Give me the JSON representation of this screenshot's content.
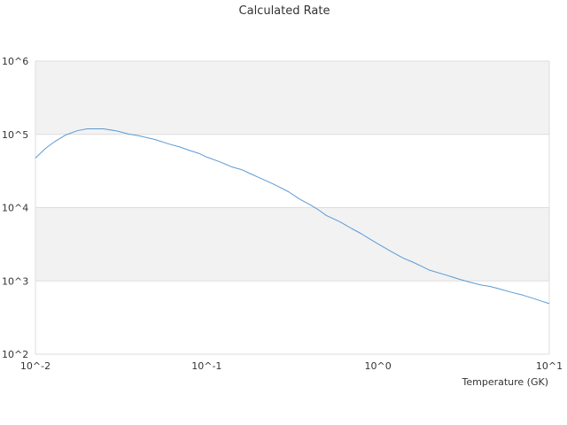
{
  "chart_data": {
    "type": "line",
    "title": "Calculated Rate",
    "xlabel": "Temperature (GK)",
    "ylabel": "",
    "x_scale": "log",
    "y_scale": "log",
    "xlim": [
      0.01,
      10
    ],
    "ylim": [
      100,
      1000000
    ],
    "x_ticks": [
      {
        "value": 0.01,
        "label": "10^-2"
      },
      {
        "value": 0.1,
        "label": "10^-1"
      },
      {
        "value": 1,
        "label": "10^0"
      },
      {
        "value": 10,
        "label": "10^1"
      }
    ],
    "y_ticks": [
      {
        "value": 100,
        "label": "10^2"
      },
      {
        "value": 1000,
        "label": "10^3"
      },
      {
        "value": 10000,
        "label": "10^4"
      },
      {
        "value": 100000,
        "label": "10^5"
      },
      {
        "value": 1000000,
        "label": "10^6"
      }
    ],
    "grid": "horizontal bands",
    "legend": "none",
    "colors": {
      "line": "#5b9bd5",
      "band": "#f2f2f2",
      "gridline": "#dddddd",
      "text": "#333333"
    },
    "series": [
      {
        "x": [
          0.01,
          0.0115,
          0.013,
          0.015,
          0.0175,
          0.02,
          0.025,
          0.03,
          0.035,
          0.04,
          0.05,
          0.06,
          0.07,
          0.08,
          0.09,
          0.1,
          0.12,
          0.14,
          0.16,
          0.18,
          0.2,
          0.25,
          0.3,
          0.35,
          0.4,
          0.45,
          0.5,
          0.6,
          0.7,
          0.8,
          0.9,
          1.0,
          1.2,
          1.4,
          1.6,
          1.8,
          2.0,
          2.5,
          3.0,
          3.5,
          4.0,
          4.5,
          5.0,
          6.0,
          7.0,
          8.0,
          9.0,
          10.0
        ],
        "values": [
          47500,
          65000,
          80000,
          98000,
          112000,
          119000,
          119000,
          111000,
          101000,
          96000,
          85000,
          74000,
          67000,
          60000,
          55000,
          49000,
          42000,
          36000,
          33000,
          29000,
          26000,
          20500,
          16500,
          13000,
          11000,
          9300,
          7800,
          6400,
          5200,
          4400,
          3700,
          3200,
          2500,
          2050,
          1800,
          1580,
          1400,
          1200,
          1050,
          950,
          880,
          840,
          790,
          700,
          640,
          580,
          530,
          490
        ]
      }
    ]
  }
}
